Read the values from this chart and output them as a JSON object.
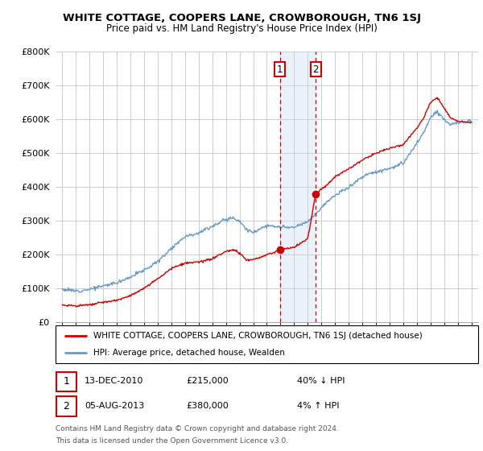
{
  "title": "WHITE COTTAGE, COOPERS LANE, CROWBOROUGH, TN6 1SJ",
  "subtitle": "Price paid vs. HM Land Registry's House Price Index (HPI)",
  "footer_line1": "Contains HM Land Registry data © Crown copyright and database right 2024.",
  "footer_line2": "This data is licensed under the Open Government Licence v3.0.",
  "legend_line1": "WHITE COTTAGE, COOPERS LANE, CROWBOROUGH, TN6 1SJ (detached house)",
  "legend_line2": "HPI: Average price, detached house, Wealden",
  "ann1_num": "1",
  "ann1_date": "13-DEC-2010",
  "ann1_price": "£215,000",
  "ann1_hpi": "40% ↓ HPI",
  "ann2_num": "2",
  "ann2_date": "05-AUG-2013",
  "ann2_price": "£380,000",
  "ann2_hpi": "4% ↑ HPI",
  "sale1_date": 2010.95,
  "sale1_price": 215000,
  "sale2_date": 2013.59,
  "sale2_price": 380000,
  "vline1": 2010.95,
  "vline2": 2013.59,
  "ylim": [
    0,
    800000
  ],
  "xlim": [
    1994.5,
    2025.5
  ],
  "red_color": "#cc0000",
  "blue_color": "#6699cc",
  "grid_color": "#cccccc",
  "background_color": "#ffffff",
  "hpi_anchors": [
    [
      1995.0,
      98000
    ],
    [
      1996.0,
      93000
    ],
    [
      1997.0,
      98000
    ],
    [
      1998.0,
      108000
    ],
    [
      1999.0,
      118000
    ],
    [
      2000.0,
      135000
    ],
    [
      2001.0,
      155000
    ],
    [
      2002.0,
      180000
    ],
    [
      2003.0,
      220000
    ],
    [
      2004.0,
      255000
    ],
    [
      2005.0,
      265000
    ],
    [
      2006.0,
      285000
    ],
    [
      2007.0,
      305000
    ],
    [
      2007.5,
      310000
    ],
    [
      2008.0,
      300000
    ],
    [
      2008.5,
      275000
    ],
    [
      2009.0,
      265000
    ],
    [
      2009.5,
      278000
    ],
    [
      2010.0,
      285000
    ],
    [
      2011.0,
      282000
    ],
    [
      2012.0,
      280000
    ],
    [
      2013.0,
      298000
    ],
    [
      2014.0,
      340000
    ],
    [
      2014.5,
      360000
    ],
    [
      2015.0,
      375000
    ],
    [
      2016.0,
      400000
    ],
    [
      2017.0,
      430000
    ],
    [
      2017.5,
      440000
    ],
    [
      2018.0,
      445000
    ],
    [
      2019.0,
      455000
    ],
    [
      2020.0,
      470000
    ],
    [
      2021.0,
      530000
    ],
    [
      2021.5,
      560000
    ],
    [
      2022.0,
      605000
    ],
    [
      2022.5,
      625000
    ],
    [
      2023.0,
      600000
    ],
    [
      2023.5,
      585000
    ],
    [
      2024.0,
      590000
    ],
    [
      2024.5,
      595000
    ],
    [
      2025.0,
      598000
    ]
  ],
  "prop_anchors": [
    [
      1995.0,
      52000
    ],
    [
      1996.0,
      49000
    ],
    [
      1997.0,
      52000
    ],
    [
      1998.0,
      60000
    ],
    [
      1999.0,
      65000
    ],
    [
      2000.0,
      80000
    ],
    [
      2001.0,
      100000
    ],
    [
      2002.0,
      130000
    ],
    [
      2003.0,
      160000
    ],
    [
      2004.0,
      175000
    ],
    [
      2005.0,
      178000
    ],
    [
      2006.0,
      188000
    ],
    [
      2007.0,
      210000
    ],
    [
      2007.5,
      215000
    ],
    [
      2008.0,
      205000
    ],
    [
      2008.5,
      185000
    ],
    [
      2009.0,
      185000
    ],
    [
      2009.5,
      192000
    ],
    [
      2010.0,
      200000
    ],
    [
      2010.94,
      214000
    ],
    [
      2010.95,
      215000
    ],
    [
      2011.0,
      216000
    ],
    [
      2012.0,
      222000
    ],
    [
      2013.0,
      248000
    ],
    [
      2013.58,
      379000
    ],
    [
      2013.59,
      380000
    ],
    [
      2014.0,
      395000
    ],
    [
      2014.5,
      410000
    ],
    [
      2015.0,
      430000
    ],
    [
      2016.0,
      455000
    ],
    [
      2017.0,
      480000
    ],
    [
      2017.5,
      490000
    ],
    [
      2018.0,
      500000
    ],
    [
      2019.0,
      515000
    ],
    [
      2020.0,
      525000
    ],
    [
      2021.0,
      575000
    ],
    [
      2021.5,
      605000
    ],
    [
      2022.0,
      650000
    ],
    [
      2022.5,
      665000
    ],
    [
      2023.0,
      635000
    ],
    [
      2023.5,
      605000
    ],
    [
      2024.0,
      595000
    ],
    [
      2024.5,
      592000
    ],
    [
      2025.0,
      590000
    ]
  ]
}
